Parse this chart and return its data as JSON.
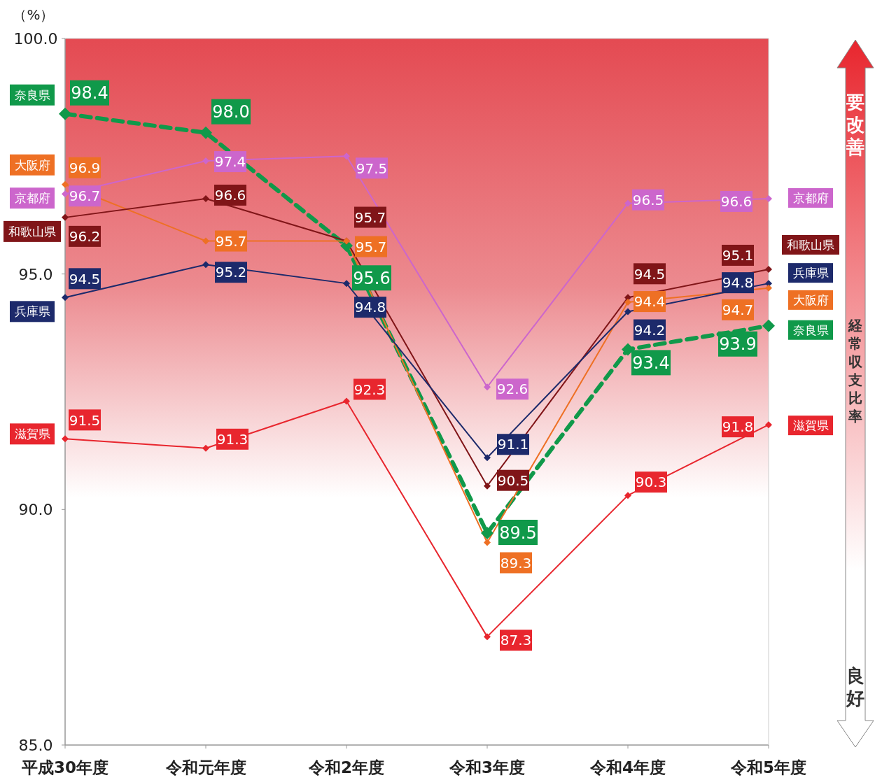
{
  "chart_data": {
    "type": "line",
    "ylabel": "（%）",
    "categories": [
      "平成30年度",
      "令和元年度",
      "令和2年度",
      "令和3年度",
      "令和4年度",
      "令和5年度"
    ],
    "ylim": [
      85,
      100
    ],
    "yticks": [
      {
        "value": 85,
        "label": "85.0"
      },
      {
        "value": 90,
        "label": "90.0"
      },
      {
        "value": 95,
        "label": "95.0"
      },
      {
        "value": 100,
        "label": "100.0"
      }
    ],
    "grid": false,
    "legend": "left",
    "marker": "diamond",
    "annotations": [
      "要改善",
      "経常収支比率",
      "良好"
    ],
    "series": [
      {
        "name": "奈良県",
        "color": "#10994a",
        "line_style": "dashed",
        "values": [
          98.4,
          98.0,
          95.6,
          89.5,
          93.4,
          93.9
        ],
        "value_labels": [
          "98.4",
          "98.0",
          "95.6",
          "89.5",
          "93.4",
          "93.9"
        ]
      },
      {
        "name": "大阪府",
        "color": "#ee7024",
        "values": [
          96.9,
          95.7,
          95.7,
          89.3,
          94.4,
          94.7
        ],
        "value_labels": [
          "96.9",
          "95.7",
          "95.7",
          "89.3",
          "94.4",
          "94.7"
        ]
      },
      {
        "name": "京都府",
        "color": "#cc66cc",
        "values": [
          96.7,
          97.4,
          97.5,
          92.6,
          96.5,
          96.6
        ],
        "value_labels": [
          "96.7",
          "97.4",
          "97.5",
          "92.6",
          "96.5",
          "96.6"
        ]
      },
      {
        "name": "和歌山県",
        "color": "#801518",
        "values": [
          96.2,
          96.6,
          95.7,
          90.5,
          94.5,
          95.1
        ],
        "value_labels": [
          "96.2",
          "96.6",
          "95.7",
          "90.5",
          "94.5",
          "95.1"
        ]
      },
      {
        "name": "兵庫県",
        "color": "#1d2a6b",
        "values": [
          94.5,
          95.2,
          94.8,
          91.1,
          94.2,
          94.8
        ],
        "value_labels": [
          "94.5",
          "95.2",
          "94.8",
          "91.1",
          "94.2",
          "94.8"
        ]
      },
      {
        "name": "滋賀県",
        "color": "#e8262e",
        "values": [
          91.5,
          91.3,
          92.3,
          87.3,
          90.3,
          91.8
        ],
        "value_labels": [
          "91.5",
          "91.3",
          "92.3",
          "87.3",
          "90.3",
          "91.8"
        ]
      }
    ]
  }
}
